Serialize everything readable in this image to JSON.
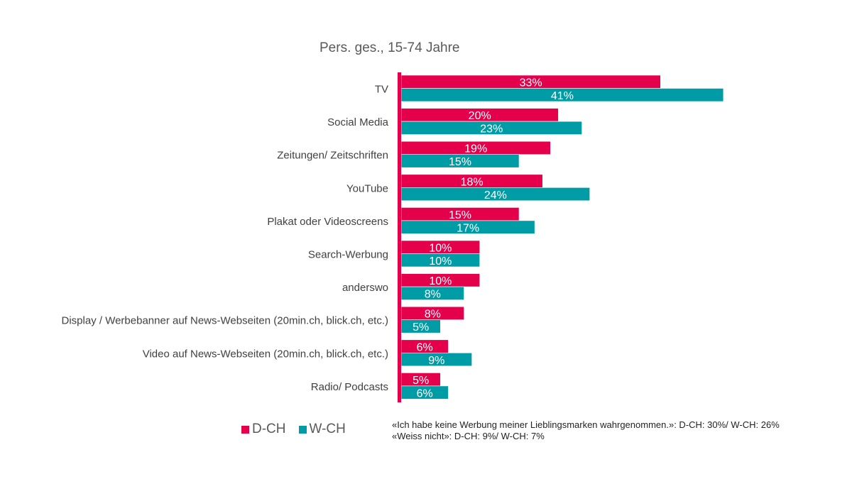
{
  "chart_data": {
    "type": "bar",
    "orientation": "horizontal",
    "title": "Pers. ges., 15-74 Jahre",
    "categories": [
      "TV",
      "Social Media",
      "Zeitungen/ Zeitschriften",
      "YouTube",
      "Plakat oder Videoscreens",
      "Search-Werbung",
      "anderswo",
      "Display / Werbebanner auf News-Webseiten (20min.ch, blick.ch, etc.)",
      "Video auf News-Webseiten (20min.ch, blick.ch, etc.)",
      "Radio/ Podcasts"
    ],
    "series": [
      {
        "name": "D-CH",
        "color": "#E4004B",
        "values": [
          33,
          20,
          19,
          18,
          15,
          10,
          10,
          8,
          6,
          5
        ]
      },
      {
        "name": "W-CH",
        "color": "#009CA6",
        "values": [
          41,
          23,
          15,
          24,
          17,
          10,
          8,
          5,
          9,
          6
        ]
      }
    ],
    "value_suffix": "%",
    "xlim": [
      0,
      45
    ],
    "grid": false,
    "legend_position": "bottom-left"
  },
  "notes": [
    "«Ich habe keine Werbung meiner Lieblingsmarken wahrgenommen.»: D-CH: 30%/ W-CH: 26%",
    "«Weiss nicht»: D-CH: 9%/ W-CH: 7%"
  ]
}
